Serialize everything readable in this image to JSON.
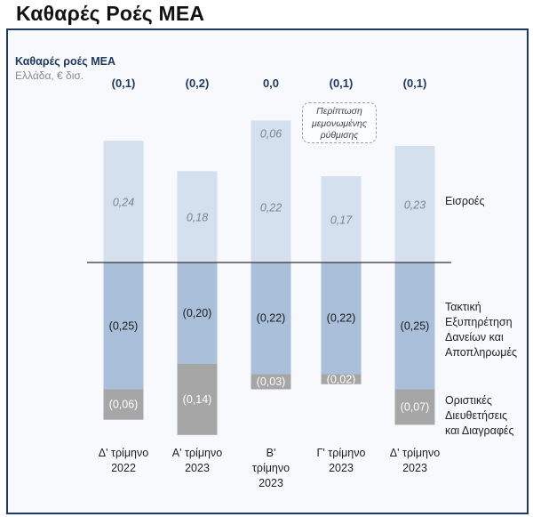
{
  "page_title": "Καθαρές Ροές ΜΕΑ",
  "chart_data": {
    "type": "bar",
    "title": "Καθαρές ροές ΜΕΑ",
    "subtitle": "Ελλάδα, € δισ.",
    "categories": [
      [
        "Δ' τρίμηνο",
        "2022"
      ],
      [
        "Α' τρίμηνο",
        "2023"
      ],
      [
        "Β'",
        "τρίμηνο",
        "2023"
      ],
      [
        "Γ' τρίμηνο",
        "2023"
      ],
      [
        "Δ' τρίμηνο",
        "2023"
      ]
    ],
    "net_labels": [
      "(0,1)",
      "(0,2)",
      "0,0",
      "(0,1)",
      "(0,1)"
    ],
    "series": [
      {
        "name": "Εισροές",
        "values": [
          0.24,
          0.18,
          0.22,
          0.17,
          0.23
        ],
        "labels": [
          "0,24",
          "0,18",
          "0,22",
          "0,17",
          "0,23"
        ],
        "color": "#d5e0ee"
      },
      {
        "name": "Περίπτωση μεμονωμένης ρύθμισης",
        "values": [
          0,
          0,
          0.06,
          0,
          0
        ],
        "labels": [
          "",
          "",
          "0,06",
          "",
          ""
        ],
        "color": "#d5e0ee"
      },
      {
        "name": "Τακτική Εξυπηρέτηση Δανείων και Αποπληρωμές",
        "values": [
          -0.25,
          -0.2,
          -0.22,
          -0.22,
          -0.25
        ],
        "labels": [
          "(0,25)",
          "(0,20)",
          "(0,22)",
          "(0,22)",
          "(0,25)"
        ],
        "color": "#aabfda"
      },
      {
        "name": "Οριστικές Διευθετήσεις και Διαγραφές",
        "values": [
          -0.06,
          -0.14,
          -0.03,
          -0.02,
          -0.07
        ],
        "labels": [
          "(0,06)",
          "(0,14)",
          "(0,03)",
          "(0,02)",
          "(0,07)"
        ],
        "color": "#a6a6a6"
      }
    ],
    "legend": [
      [
        "Εισροές"
      ],
      [
        "Τακτική",
        "Εξυπηρέτηση",
        "Δανείων και",
        "Αποπληρωμές"
      ],
      [
        "Οριστικές",
        "Διευθετήσεις",
        "και Διαγραφές"
      ]
    ],
    "callout": [
      "Περίπτωση",
      "μεμονωμένης",
      "ρύθμισης"
    ],
    "colors": {
      "net_label": "#1f3864",
      "title": "#1f3864",
      "panel_border": "#1f3864"
    }
  }
}
